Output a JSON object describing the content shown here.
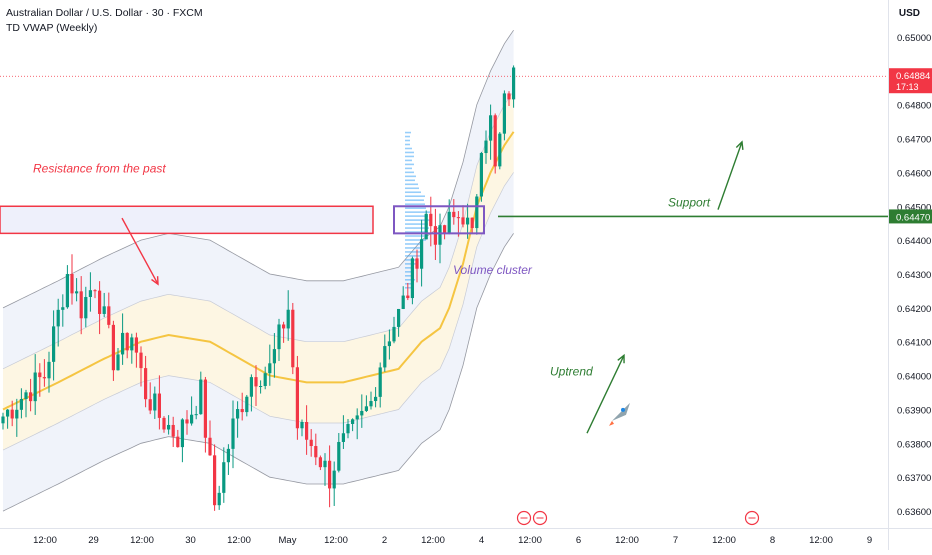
{
  "header": {
    "symbol_title": "Australian Dollar / U.S. Dollar · 30 · FXCM",
    "indicator": "TD VWAP (Weekly)",
    "currency": "USD"
  },
  "colors": {
    "up": "#089981",
    "down": "#f23645",
    "vwap": "#f5c542",
    "band_line": "#9598a1",
    "band_fill": "#f0f3fa",
    "inner_fill": "#fdf6e3",
    "resistance": "#f23645",
    "resistance_fill": "#eef0fb",
    "support": "#2e7d32",
    "cluster_box": "#7e57c2",
    "volume_profile": "#42a5f5"
  },
  "chart_data": {
    "type": "candlestick",
    "ylim": [
      0.6355,
      0.6505
    ],
    "y_ticks": [
      "0.63600",
      "0.63700",
      "0.63800",
      "0.63900",
      "0.64000",
      "0.64100",
      "0.64200",
      "0.64300",
      "0.64400",
      "0.64500",
      "0.64600",
      "0.64700",
      "0.64800",
      "0.64900",
      "0.65000"
    ],
    "x_ticks": [
      "12:00",
      "29",
      "12:00",
      "30",
      "12:00",
      "May",
      "12:00",
      "2",
      "12:00",
      "4",
      "12:00",
      "6",
      "12:00",
      "7",
      "12:00",
      "8",
      "12:00",
      "9"
    ],
    "bar_count": 112,
    "last_price": "0.64884",
    "countdown": "17:13",
    "support_price": "0.64470",
    "resistance_zone": [
      0.6442,
      0.645
    ],
    "volume_cluster_zone": [
      0.6442,
      0.645
    ],
    "annotations": {
      "resistance": "Resistance from the past",
      "support": "Support",
      "volume_cluster": "Volume cluster",
      "uptrend": "Uptrend"
    },
    "anchors": [
      [
        0,
        0.6388
      ],
      [
        5,
        0.6395
      ],
      [
        9,
        0.64
      ],
      [
        14,
        0.643
      ],
      [
        17,
        0.642
      ],
      [
        20,
        0.6428
      ],
      [
        24,
        0.6405
      ],
      [
        28,
        0.6412
      ],
      [
        31,
        0.6395
      ],
      [
        34,
        0.6388
      ],
      [
        38,
        0.6382
      ],
      [
        43,
        0.6395
      ],
      [
        46,
        0.6362
      ],
      [
        50,
        0.6385
      ],
      [
        54,
        0.64
      ],
      [
        58,
        0.6402
      ],
      [
        62,
        0.642
      ],
      [
        64,
        0.6385
      ],
      [
        68,
        0.6378
      ],
      [
        71,
        0.637
      ],
      [
        73,
        0.6378
      ],
      [
        77,
        0.6385
      ],
      [
        80,
        0.6392
      ],
      [
        83,
        0.641
      ],
      [
        86,
        0.6418
      ],
      [
        88,
        0.6425
      ],
      [
        90,
        0.6436
      ],
      [
        92,
        0.6447
      ],
      [
        95,
        0.644
      ],
      [
        97,
        0.6445
      ],
      [
        100,
        0.6448
      ],
      [
        102,
        0.644
      ],
      [
        104,
        0.647
      ],
      [
        106,
        0.6475
      ],
      [
        107,
        0.646
      ],
      [
        109,
        0.648
      ],
      [
        111,
        0.6488
      ]
    ],
    "vwap": [
      [
        0,
        0.639
      ],
      [
        12,
        0.6398
      ],
      [
        22,
        0.6405
      ],
      [
        30,
        0.641
      ],
      [
        36,
        0.6412
      ],
      [
        45,
        0.641
      ],
      [
        58,
        0.64
      ],
      [
        66,
        0.6398
      ],
      [
        74,
        0.6398
      ],
      [
        80,
        0.64
      ],
      [
        86,
        0.6402
      ],
      [
        91,
        0.641
      ],
      [
        95,
        0.6414
      ],
      [
        97,
        0.642
      ],
      [
        100,
        0.6433
      ],
      [
        103,
        0.645
      ],
      [
        106,
        0.646
      ],
      [
        109,
        0.6468
      ],
      [
        111,
        0.6472
      ]
    ],
    "band_width_inner": 0.0012,
    "band_width_outer": 0.003
  },
  "economic_events": [
    "lightning-event-icon",
    "us-flag-event-icon",
    "us-flag-event-icon"
  ]
}
